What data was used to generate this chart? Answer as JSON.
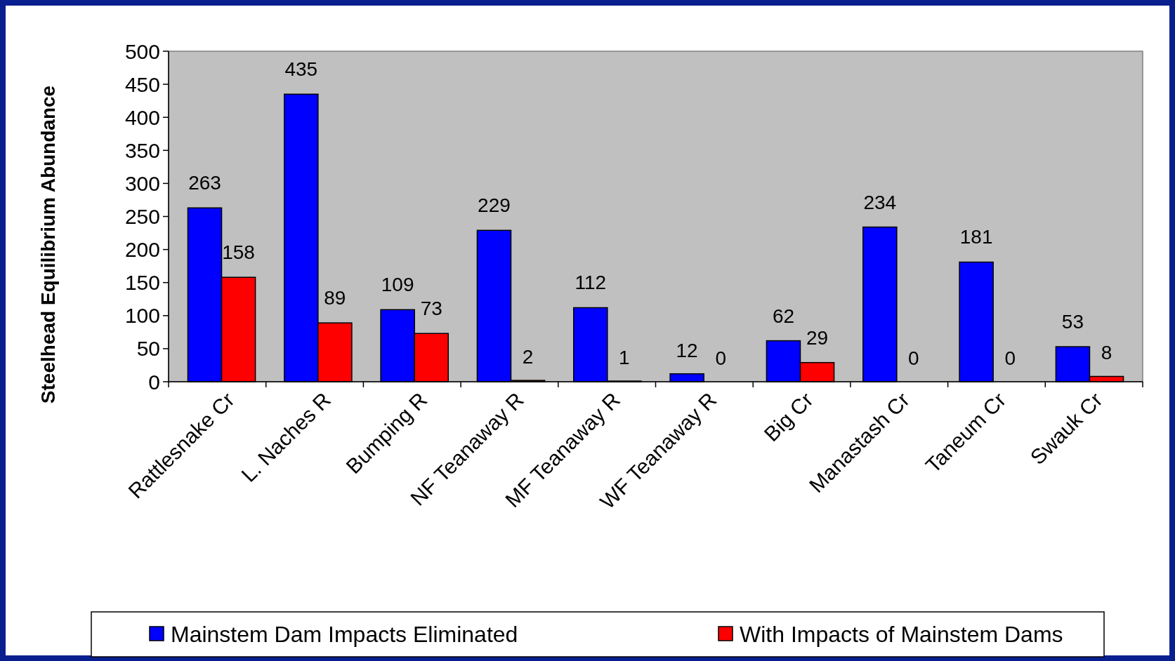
{
  "chart_data": {
    "type": "bar",
    "ylabel": "Steelhead Equilibrium Abundance",
    "categories": [
      "Rattlesnake Cr",
      "L. Naches R",
      "Bumping R",
      "NF Teanaway R",
      "MF Teanaway R",
      "WF Teanaway R",
      "Big Cr",
      "Manastash Cr",
      "Taneum Cr",
      "Swauk Cr"
    ],
    "series": [
      {
        "name": "Mainstem Dam Impacts Eliminated",
        "color": "#0000ff",
        "values": [
          263,
          435,
          109,
          229,
          112,
          12,
          62,
          234,
          181,
          53
        ]
      },
      {
        "name": "With Impacts of Mainstem Dams",
        "color": "#ff0000",
        "values": [
          158,
          89,
          73,
          2,
          1,
          0,
          29,
          0,
          0,
          8
        ]
      }
    ],
    "ylim": [
      0,
      500
    ],
    "yticks": [
      0,
      50,
      100,
      150,
      200,
      250,
      300,
      350,
      400,
      450,
      500
    ],
    "data_labels": true,
    "grid": false,
    "legend": "bottom"
  }
}
